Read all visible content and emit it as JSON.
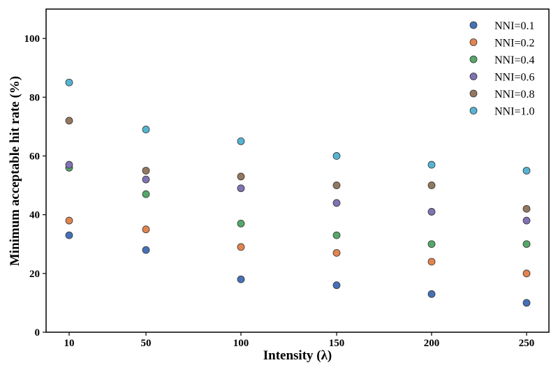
{
  "chart_data": {
    "type": "scatter",
    "title": "",
    "xlabel": "Intensity (λ)",
    "ylabel": "Minimum acceptable hit rate (%)",
    "categories": [
      "10",
      "50",
      "100",
      "150",
      "200",
      "250"
    ],
    "ylim": [
      0,
      110
    ],
    "yticks": [
      "0",
      "20",
      "40",
      "60",
      "80",
      "100"
    ],
    "grid": false,
    "legend_position": "top-right",
    "series": [
      {
        "name": "NNI=0.1",
        "color": "#4471b7",
        "values": [
          33,
          28,
          18,
          16,
          13,
          10
        ]
      },
      {
        "name": "NNI=0.2",
        "color": "#e1844f",
        "values": [
          38,
          35,
          29,
          27,
          24,
          20
        ]
      },
      {
        "name": "NNI=0.4",
        "color": "#55a86a",
        "values": [
          56,
          47,
          37,
          33,
          30,
          30
        ]
      },
      {
        "name": "NNI=0.6",
        "color": "#8172b3",
        "values": [
          57,
          52,
          49,
          44,
          41,
          38
        ]
      },
      {
        "name": "NNI=0.8",
        "color": "#937860",
        "values": [
          72,
          55,
          53,
          50,
          50,
          42
        ]
      },
      {
        "name": "NNI=1.0",
        "color": "#56b4d3",
        "values": [
          85,
          69,
          65,
          60,
          57,
          55
        ]
      }
    ]
  }
}
